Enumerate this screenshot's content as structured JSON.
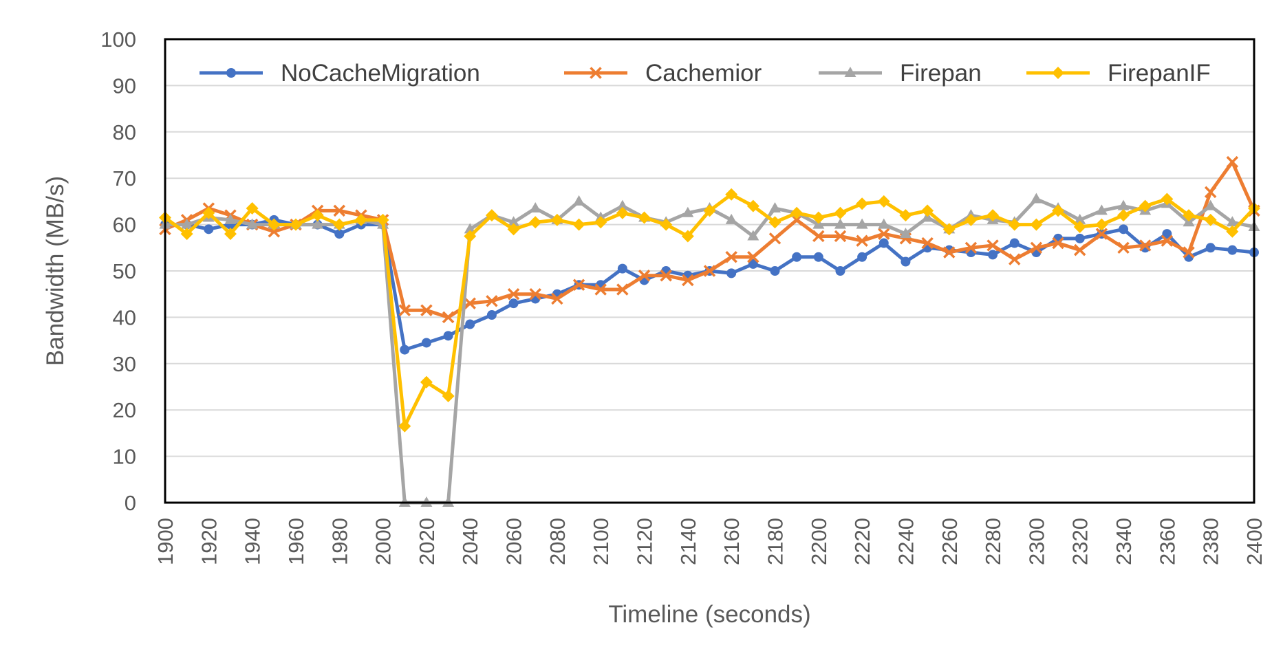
{
  "chart_data": {
    "type": "line",
    "title": "",
    "xlabel": "Timeline (seconds)",
    "ylabel": "Bandwidth (MB/s)",
    "xlim": [
      1900,
      2400
    ],
    "ylim": [
      0,
      100
    ],
    "x_ticks": [
      1900,
      1920,
      1940,
      1960,
      1980,
      2000,
      2020,
      2040,
      2060,
      2080,
      2100,
      2120,
      2140,
      2160,
      2180,
      2200,
      2220,
      2240,
      2260,
      2280,
      2300,
      2320,
      2340,
      2360,
      2380,
      2400
    ],
    "y_ticks": [
      0,
      10,
      20,
      30,
      40,
      50,
      60,
      70,
      80,
      90,
      100
    ],
    "grid": "horizontal",
    "legend_position": "top",
    "x": [
      1900,
      1910,
      1920,
      1930,
      1940,
      1950,
      1960,
      1970,
      1980,
      1990,
      2000,
      2010,
      2020,
      2030,
      2040,
      2050,
      2060,
      2070,
      2080,
      2090,
      2100,
      2110,
      2120,
      2130,
      2140,
      2150,
      2160,
      2170,
      2180,
      2190,
      2200,
      2210,
      2220,
      2230,
      2240,
      2250,
      2260,
      2270,
      2280,
      2290,
      2300,
      2310,
      2320,
      2330,
      2340,
      2350,
      2360,
      2370,
      2380,
      2390,
      2400
    ],
    "series": [
      {
        "name": "NoCacheMigration",
        "color": "#4472C4",
        "marker": "circle",
        "values": [
          60,
          60,
          59,
          60,
          60,
          61,
          60,
          60,
          58,
          60,
          60,
          33,
          34.5,
          36,
          38.5,
          40.5,
          43,
          44,
          45,
          47,
          47,
          50.5,
          48,
          50,
          49,
          50,
          49.5,
          51.5,
          50,
          53,
          53,
          50,
          53,
          56,
          52,
          55,
          54.5,
          54,
          53.5,
          56,
          54,
          57,
          57,
          58,
          59,
          55,
          58,
          53,
          55,
          54.5,
          54
        ]
      },
      {
        "name": "Cachemior",
        "color": "#ED7D31",
        "marker": "x",
        "values": [
          59,
          61,
          63.5,
          62,
          60,
          58.5,
          60,
          63,
          63,
          62,
          61,
          41.5,
          41.5,
          40,
          43,
          43.5,
          45,
          45,
          44,
          47,
          46,
          46,
          49,
          49,
          48,
          50,
          53,
          53,
          57,
          61,
          57.5,
          57.5,
          56.5,
          58,
          57,
          56,
          54,
          55,
          55.5,
          52.5,
          55,
          56,
          54.5,
          58,
          55,
          55.5,
          56.5,
          54,
          67,
          73.5,
          63
        ]
      },
      {
        "name": "Firepan",
        "color": "#A5A5A5",
        "marker": "triangle",
        "values": [
          60,
          60,
          61.5,
          61,
          60,
          60,
          60,
          60,
          60,
          61,
          60,
          0,
          0,
          0,
          59,
          62,
          60.5,
          63.5,
          61,
          65,
          61.5,
          64,
          61.5,
          60.5,
          62.5,
          63.5,
          61,
          57.5,
          63.5,
          62.5,
          60,
          60,
          60,
          60,
          58,
          61.5,
          59,
          62,
          61,
          60.5,
          65.5,
          63.5,
          61,
          63,
          64,
          63,
          64.5,
          60.5,
          64,
          60.5,
          59.5
        ]
      },
      {
        "name": "FirepanIF",
        "color": "#FFC000",
        "marker": "diamond",
        "values": [
          61.5,
          58,
          62.5,
          58,
          63.5,
          60,
          60,
          62,
          60,
          61,
          61,
          16.5,
          26,
          23,
          57.5,
          62,
          59,
          60.5,
          61,
          60,
          60.5,
          62.5,
          61.5,
          60,
          57.5,
          63,
          66.5,
          64,
          60.5,
          62.5,
          61.5,
          62.5,
          64.5,
          65,
          62,
          63,
          59,
          61,
          62,
          60,
          60,
          63,
          59.5,
          60,
          62,
          64,
          65.5,
          62,
          61,
          58.5,
          63.5
        ]
      }
    ]
  }
}
